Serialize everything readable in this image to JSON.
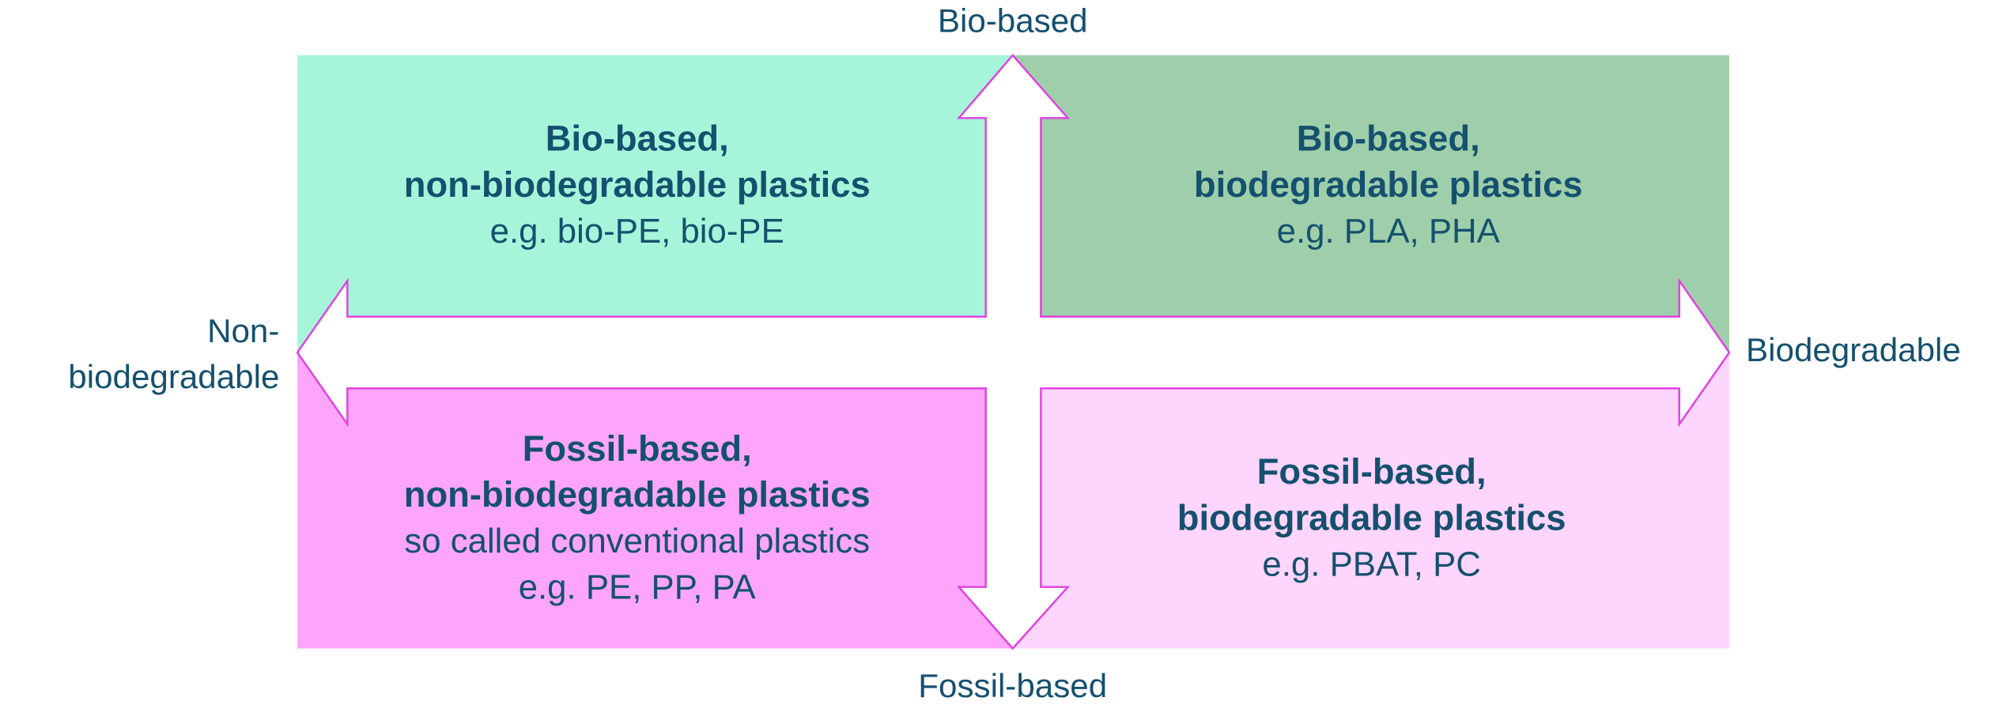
{
  "axes": {
    "top": "Bio-based",
    "bottom": "Fossil-based",
    "left": [
      "Non-",
      "biodegradable"
    ],
    "right": "Biodegradable"
  },
  "quadrants": [
    {
      "title": [
        "Bio-based,",
        "non-biodegradable plastics"
      ],
      "text": [
        "e.g. bio-PE, bio-PE"
      ]
    },
    {
      "title": [
        "Bio-based,",
        "biodegradable plastics"
      ],
      "text": [
        "e.g. PLA, PHA"
      ]
    },
    {
      "title": [
        "Fossil-based,",
        "non-biodegradable plastics"
      ],
      "text": [
        "so called conventional plastics",
        "e.g. PE, PP, PA"
      ]
    },
    {
      "title": [
        "Fossil-based,",
        "biodegradable plastics"
      ],
      "text": [
        "e.g. PBAT, PC"
      ]
    }
  ]
}
